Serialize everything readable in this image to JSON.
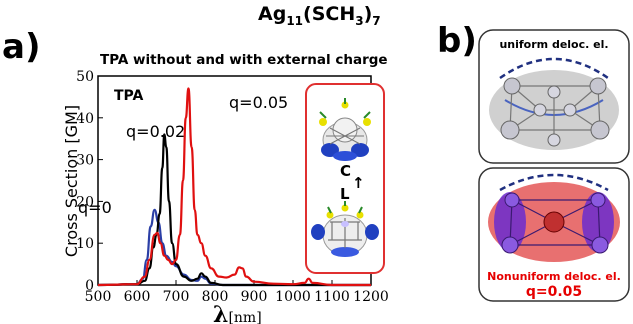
{
  "figure": {
    "panel_a_label": "a)",
    "panel_b_label": "b)",
    "formula_main": "Ag",
    "formula_sub1": "11",
    "formula_mid": "(SCH",
    "formula_sub2": "3",
    "formula_end": ")",
    "formula_sub3": "7"
  },
  "chart_data": {
    "type": "line",
    "title": "TPA without and with external charge",
    "xlabel_symbol": "λ",
    "xlabel_unit": "[nm]",
    "ylabel": "Cross Section [GM]",
    "xlim": [
      500,
      1200
    ],
    "ylim": [
      0,
      50
    ],
    "x_ticks": [
      500,
      600,
      700,
      800,
      900,
      1000,
      1100,
      1200
    ],
    "y_ticks": [
      0,
      10,
      20,
      30,
      40,
      50
    ],
    "corner_label": "TPA",
    "annotations": [
      "q=0",
      "q=0.02",
      "q=0.05"
    ],
    "inset_labels": {
      "top": "C",
      "arrow": "↑",
      "bottom": "L"
    },
    "series": [
      {
        "name": "q=0",
        "color": "#2b3fa6",
        "x": [
          500,
          600,
          615,
          625,
          635,
          645,
          655,
          665,
          675,
          690,
          700,
          720,
          740,
          755,
          765,
          775,
          790,
          820,
          900,
          1200
        ],
        "y": [
          0,
          0.2,
          1.5,
          6,
          14,
          18,
          15,
          10,
          7,
          5.5,
          4.5,
          2.5,
          1.2,
          1,
          2,
          1.5,
          0.3,
          0,
          0,
          0
        ]
      },
      {
        "name": "q=0.02",
        "color": "#000000",
        "x": [
          500,
          600,
          620,
          632,
          642,
          650,
          658,
          665,
          670,
          675,
          682,
          690,
          700,
          720,
          740,
          755,
          765,
          775,
          790,
          820,
          900,
          1200
        ],
        "y": [
          0,
          0.2,
          1,
          4,
          9,
          12,
          17,
          28,
          36,
          33,
          20,
          10,
          5,
          2,
          1,
          1.5,
          2.8,
          2,
          0.5,
          0,
          0,
          0
        ]
      },
      {
        "name": "q=0.05",
        "color": "#e01010",
        "x": [
          500,
          600,
          620,
          632,
          645,
          652,
          660,
          670,
          680,
          690,
          700,
          710,
          718,
          725,
          732,
          740,
          748,
          755,
          765,
          775,
          790,
          810,
          830,
          850,
          862,
          870,
          880,
          900,
          950,
          1000,
          1030,
          1040,
          1050,
          1100,
          1200
        ],
        "y": [
          0,
          0.2,
          2,
          6,
          12,
          12.5,
          10,
          7,
          6,
          5,
          6,
          12,
          25,
          40,
          47,
          33,
          18,
          12,
          10,
          7,
          4,
          2,
          1.8,
          2.5,
          4.2,
          4,
          2,
          0.8,
          0.3,
          0.2,
          0.5,
          1.5,
          0.5,
          0,
          0
        ]
      }
    ]
  },
  "panel_b": {
    "top_card_title": "uniform deloc. el.",
    "bottom_card_title": "Nonuniform deloc. el.",
    "bottom_card_q": "q=0.05"
  },
  "colors": {
    "inset_border": "#e03030",
    "card_border": "#333333",
    "card_gray_fill": "#d0d0d0",
    "card_red_fill": "#e87070",
    "card_purple": "#6a2ccf"
  }
}
